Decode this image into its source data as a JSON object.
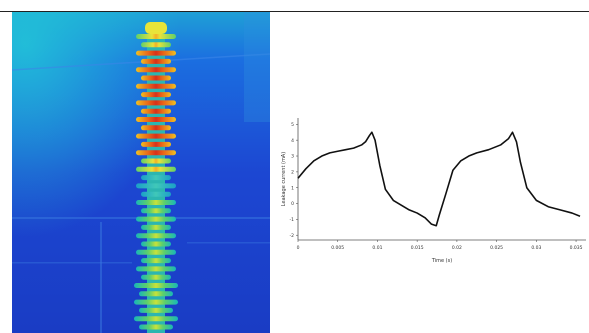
{
  "chart_data": {
    "type": "line",
    "xlabel": "Time (s)",
    "ylabel": "Leakage current (mA)",
    "x_ticks": [
      "0",
      "0.005",
      "0.01",
      "0.015",
      "0.02",
      "0.025",
      "0.03",
      "0.035"
    ],
    "y_ticks": [
      "-2",
      "-1",
      "0",
      "1",
      "2",
      "3",
      "4",
      "5"
    ],
    "xlim": [
      0,
      0.036
    ],
    "ylim": [
      -2.3,
      5.4
    ],
    "grid": false,
    "series": [
      {
        "points": [
          [
            0.0,
            1.6
          ],
          [
            0.001,
            2.2
          ],
          [
            0.002,
            2.7
          ],
          [
            0.003,
            3.0
          ],
          [
            0.004,
            3.2
          ],
          [
            0.005,
            3.3
          ],
          [
            0.006,
            3.4
          ],
          [
            0.007,
            3.5
          ],
          [
            0.008,
            3.7
          ],
          [
            0.0085,
            3.9
          ],
          [
            0.009,
            4.3
          ],
          [
            0.0093,
            4.5
          ],
          [
            0.0097,
            4.0
          ],
          [
            0.0103,
            2.4
          ],
          [
            0.011,
            0.9
          ],
          [
            0.012,
            0.2
          ],
          [
            0.013,
            -0.1
          ],
          [
            0.014,
            -0.4
          ],
          [
            0.015,
            -0.6
          ],
          [
            0.016,
            -0.9
          ],
          [
            0.0168,
            -1.3
          ],
          [
            0.0174,
            -1.4
          ],
          [
            0.0178,
            -0.7
          ],
          [
            0.0186,
            0.6
          ],
          [
            0.0195,
            2.1
          ],
          [
            0.0205,
            2.7
          ],
          [
            0.0215,
            3.0
          ],
          [
            0.0225,
            3.2
          ],
          [
            0.024,
            3.4
          ],
          [
            0.0255,
            3.7
          ],
          [
            0.0265,
            4.1
          ],
          [
            0.027,
            4.5
          ],
          [
            0.0275,
            3.9
          ],
          [
            0.028,
            2.6
          ],
          [
            0.0288,
            1.0
          ],
          [
            0.03,
            0.2
          ],
          [
            0.0315,
            -0.2
          ],
          [
            0.033,
            -0.4
          ],
          [
            0.0345,
            -0.6
          ],
          [
            0.0355,
            -0.8
          ]
        ]
      }
    ]
  }
}
